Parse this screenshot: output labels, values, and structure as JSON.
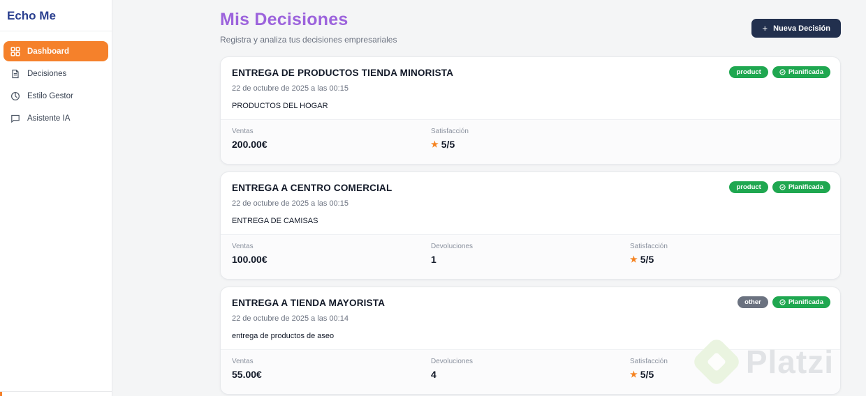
{
  "app": {
    "title": "Echo Me"
  },
  "sidebar": {
    "items": [
      {
        "label": "Dashboard",
        "icon": "dashboard-grid-icon",
        "active": true
      },
      {
        "label": "Decisiones",
        "icon": "document-icon",
        "active": false
      },
      {
        "label": "Estilo Gestor",
        "icon": "info-circle-icon",
        "active": false
      },
      {
        "label": "Asistente IA",
        "icon": "chat-bubble-icon",
        "active": false
      }
    ]
  },
  "header": {
    "title": "Mis Decisiones",
    "subtitle": "Registra y analiza tus decisiones empresariales",
    "new_decision_button": "Nueva Decisión"
  },
  "icons": {
    "plus": "+",
    "star": "★"
  },
  "cards": [
    {
      "title": "ENTREGA DE PRODUCTOS TIENDA MINORISTA",
      "date": "22 de octubre de 2025 a las 00:15",
      "description": "PRODUCTOS DEL HOGAR",
      "category_badge": {
        "label": "product",
        "color": "#1FA750"
      },
      "status_badge": {
        "label": "Planificada",
        "color": "#1FA750"
      },
      "stats": [
        {
          "label": "Ventas",
          "value": "200.00€",
          "star": false
        },
        {
          "label": "Satisfacción",
          "value": "5/5",
          "star": true
        }
      ]
    },
    {
      "title": "ENTREGA A CENTRO COMERCIAL",
      "date": "22 de octubre de 2025 a las 00:15",
      "description": "ENTREGA DE CAMISAS",
      "category_badge": {
        "label": "product",
        "color": "#1FA750"
      },
      "status_badge": {
        "label": "Planificada",
        "color": "#1FA750"
      },
      "stats": [
        {
          "label": "Ventas",
          "value": "100.00€",
          "star": false
        },
        {
          "label": "Devoluciones",
          "value": "1",
          "star": false
        },
        {
          "label": "Satisfacción",
          "value": "5/5",
          "star": true
        }
      ]
    },
    {
      "title": "ENTREGA A TIENDA MAYORISTA",
      "date": "22 de octubre de 2025 a las 00:14",
      "description": "entrega de productos de aseo",
      "category_badge": {
        "label": "other",
        "color": "#6B7280"
      },
      "status_badge": {
        "label": "Planificada",
        "color": "#1FA750"
      },
      "stats": [
        {
          "label": "Ventas",
          "value": "55.00€",
          "star": false
        },
        {
          "label": "Devoluciones",
          "value": "4",
          "star": false
        },
        {
          "label": "Satisfacción",
          "value": "5/5",
          "star": true
        }
      ]
    }
  ],
  "watermark": {
    "brand": "Platzi"
  },
  "colors": {
    "accent_orange": "#F5812B",
    "title_purple": "#9C63DC",
    "brand_navy": "#2A3F8F",
    "button_navy": "#22304E",
    "badge_green": "#1FA750",
    "badge_gray": "#6B7280",
    "star_orange": "#F5821F"
  }
}
